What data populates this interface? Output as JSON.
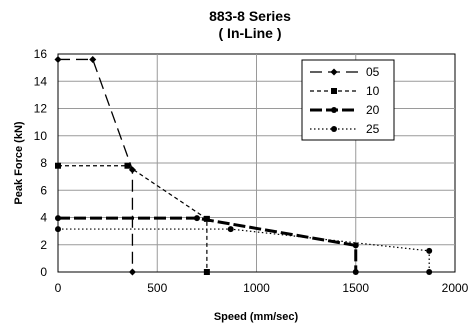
{
  "chart_data": {
    "type": "line",
    "title": "883-8 Series",
    "subtitle": "( In-Line )",
    "xlabel": "Speed (mm/sec)",
    "ylabel": "Peak Force (kN)",
    "xlim": [
      0,
      2000
    ],
    "ylim": [
      0,
      16
    ],
    "xticks": [
      "0",
      "500",
      "1000",
      "1500",
      "2000"
    ],
    "yticks": [
      "0",
      "2",
      "4",
      "6",
      "8",
      "10",
      "12",
      "14",
      "16"
    ],
    "grid": true,
    "legend_position": "top-right",
    "series": [
      {
        "name": "05",
        "style": "long-dash",
        "marker": "diamond",
        "points": [
          [
            0,
            15.6
          ],
          [
            175,
            15.6
          ],
          [
            375,
            7.5
          ],
          [
            375,
            0
          ]
        ]
      },
      {
        "name": "10",
        "style": "short-dash",
        "marker": "square",
        "points": [
          [
            0,
            7.8
          ],
          [
            350,
            7.8
          ],
          [
            750,
            3.9
          ],
          [
            750,
            0
          ]
        ]
      },
      {
        "name": "20",
        "style": "thick-dash",
        "marker": "circle",
        "points": [
          [
            0,
            3.95
          ],
          [
            700,
            3.95
          ],
          [
            1500,
            1.95
          ],
          [
            1500,
            0
          ]
        ]
      },
      {
        "name": "25",
        "style": "dotted",
        "marker": "circle",
        "points": [
          [
            0,
            3.15
          ],
          [
            870,
            3.15
          ],
          [
            1870,
            1.55
          ],
          [
            1870,
            0
          ]
        ]
      }
    ]
  }
}
